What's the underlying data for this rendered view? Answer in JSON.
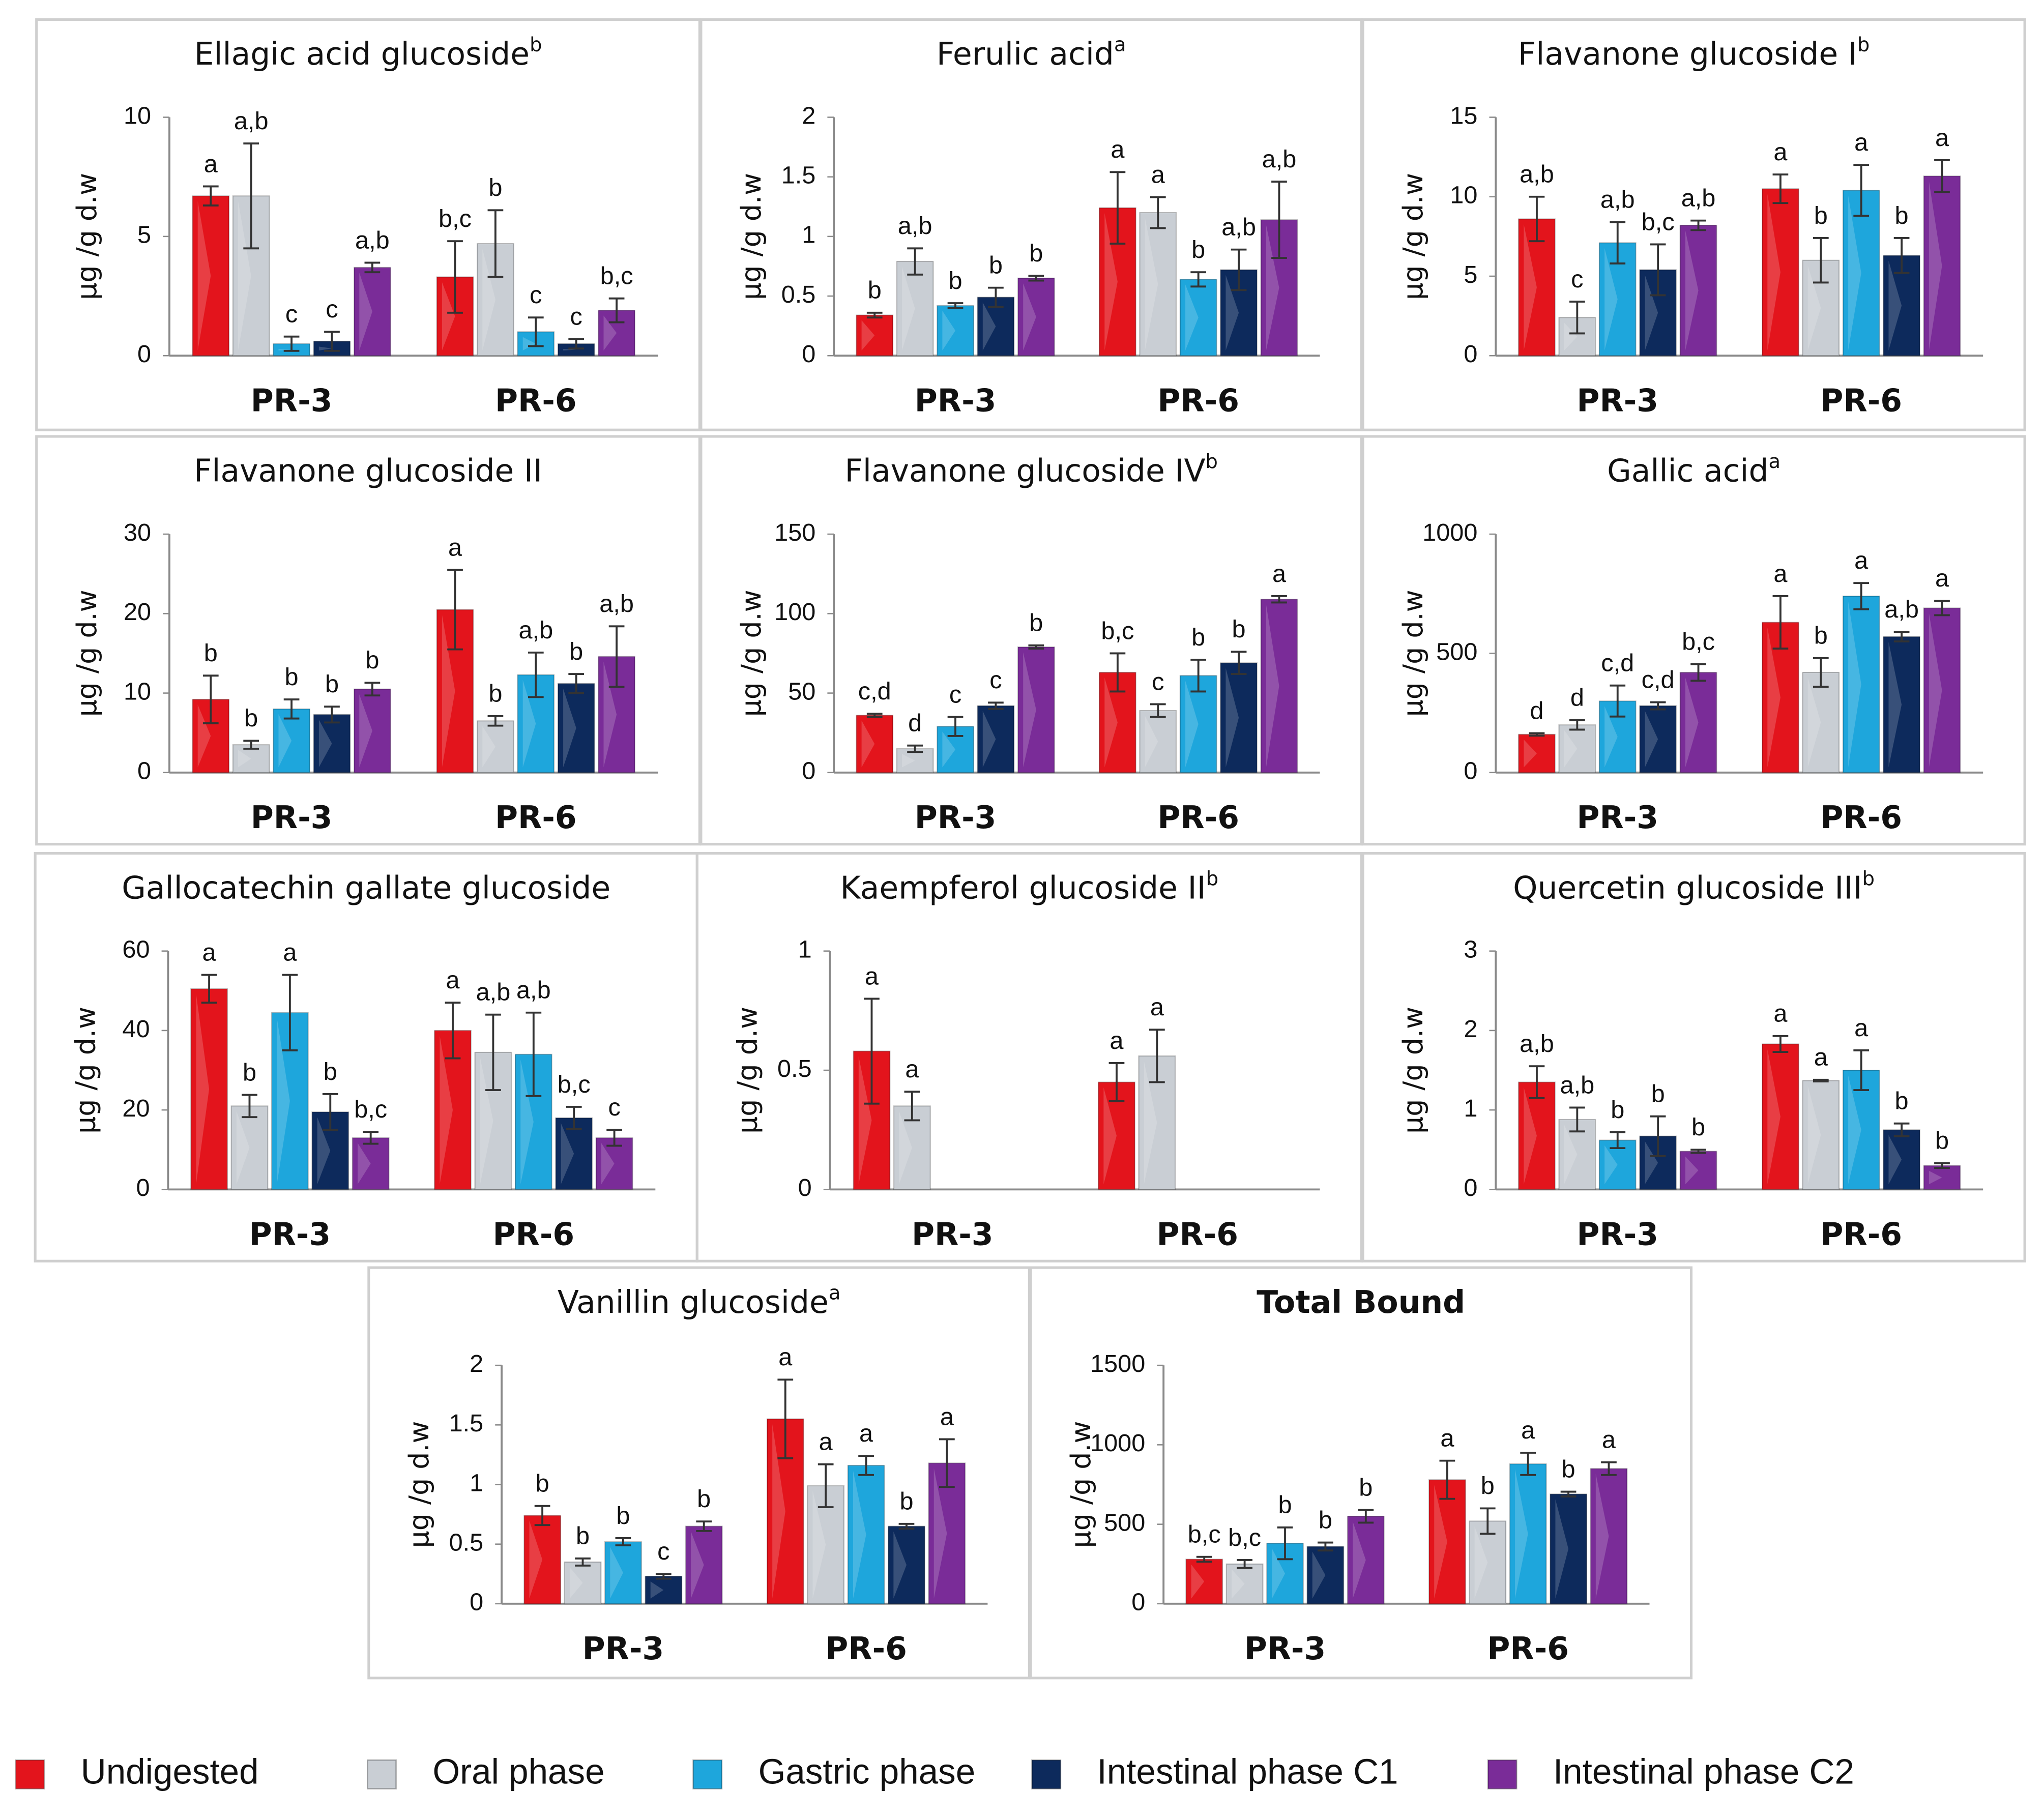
{
  "legend": [
    {
      "name": "Undigested",
      "color": "#e3141c"
    },
    {
      "name": "Oral phase",
      "color": "#c9ced4"
    },
    {
      "name": "Gastric phase",
      "color": "#1ea6dc"
    },
    {
      "name": "Intestinal phase C1",
      "color": "#0d2a5c"
    },
    {
      "name": "Intestinal phase C2",
      "color": "#7a2c98"
    }
  ],
  "chart_data": [
    {
      "type": "bar",
      "title": "Ellagic acid glucoside",
      "title_sup": "b",
      "ylabel": "μg /g d.w",
      "categories": [
        "PR-3",
        "PR-6"
      ],
      "ylim": [
        0,
        10
      ],
      "yticks": [
        0,
        5,
        10
      ],
      "series": [
        {
          "values": [
            6.7,
            3.3
          ],
          "errors": [
            0.4,
            1.5
          ],
          "letters": [
            "a",
            "b,c"
          ]
        },
        {
          "values": [
            6.7,
            4.7
          ],
          "errors": [
            2.2,
            1.4
          ],
          "letters": [
            "a,b",
            "b"
          ]
        },
        {
          "values": [
            0.5,
            1.0
          ],
          "errors": [
            0.3,
            0.6
          ],
          "letters": [
            "c",
            "c"
          ]
        },
        {
          "values": [
            0.6,
            0.5
          ],
          "errors": [
            0.4,
            0.2
          ],
          "letters": [
            "c",
            "c"
          ]
        },
        {
          "values": [
            3.7,
            1.9
          ],
          "errors": [
            0.2,
            0.5
          ],
          "letters": [
            "a,b",
            "b,c"
          ]
        }
      ]
    },
    {
      "type": "bar",
      "title": "Ferulic acid",
      "title_sup": "a",
      "ylabel": "μg /g d.w",
      "categories": [
        "PR-3",
        "PR-6"
      ],
      "ylim": [
        0,
        2
      ],
      "yticks": [
        0,
        0.5,
        1,
        1.5,
        2
      ],
      "series": [
        {
          "values": [
            0.34,
            1.24
          ],
          "errors": [
            0.02,
            0.3
          ],
          "letters": [
            "b",
            "a"
          ]
        },
        {
          "values": [
            0.79,
            1.2
          ],
          "errors": [
            0.11,
            0.13
          ],
          "letters": [
            "a,b",
            "a"
          ]
        },
        {
          "values": [
            0.42,
            0.64
          ],
          "errors": [
            0.02,
            0.06
          ],
          "letters": [
            "b",
            "b"
          ]
        },
        {
          "values": [
            0.49,
            0.72
          ],
          "errors": [
            0.08,
            0.17
          ],
          "letters": [
            "b",
            "a,b"
          ]
        },
        {
          "values": [
            0.65,
            1.14
          ],
          "errors": [
            0.02,
            0.32
          ],
          "letters": [
            "b",
            "a,b"
          ]
        }
      ]
    },
    {
      "type": "bar",
      "title": "Flavanone glucoside I",
      "title_sup": "b",
      "ylabel": "μg /g d.w",
      "categories": [
        "PR-3",
        "PR-6"
      ],
      "ylim": [
        0,
        15
      ],
      "yticks": [
        0,
        5,
        10,
        15
      ],
      "series": [
        {
          "values": [
            8.6,
            10.5
          ],
          "errors": [
            1.4,
            0.9
          ],
          "letters": [
            "a,b",
            "a"
          ]
        },
        {
          "values": [
            2.4,
            6.0
          ],
          "errors": [
            1.0,
            1.4
          ],
          "letters": [
            "c",
            "b"
          ]
        },
        {
          "values": [
            7.1,
            10.4
          ],
          "errors": [
            1.3,
            1.6
          ],
          "letters": [
            "a,b",
            "a"
          ]
        },
        {
          "values": [
            5.4,
            6.3
          ],
          "errors": [
            1.6,
            1.1
          ],
          "letters": [
            "b,c",
            "b"
          ]
        },
        {
          "values": [
            8.2,
            11.3
          ],
          "errors": [
            0.3,
            1.0
          ],
          "letters": [
            "a,b",
            "a"
          ]
        }
      ]
    },
    {
      "type": "bar",
      "title": "Flavanone glucoside II",
      "ylabel": "μg /g d.w",
      "categories": [
        "PR-3",
        "PR-6"
      ],
      "ylim": [
        0,
        30
      ],
      "yticks": [
        0,
        10,
        20,
        30
      ],
      "series": [
        {
          "values": [
            9.2,
            20.5
          ],
          "errors": [
            3,
            5
          ],
          "letters": [
            "b",
            "a"
          ]
        },
        {
          "values": [
            3.5,
            6.5
          ],
          "errors": [
            0.5,
            0.6
          ],
          "letters": [
            "b",
            "b"
          ]
        },
        {
          "values": [
            8,
            12.3
          ],
          "errors": [
            1.2,
            2.8
          ],
          "letters": [
            "b",
            "a,b"
          ]
        },
        {
          "values": [
            7.3,
            11.2
          ],
          "errors": [
            1,
            1.2
          ],
          "letters": [
            "b",
            "b"
          ]
        },
        {
          "values": [
            10.5,
            14.6
          ],
          "errors": [
            0.8,
            3.8
          ],
          "letters": [
            "b",
            "a,b"
          ]
        }
      ]
    },
    {
      "type": "bar",
      "title": "Flavanone glucoside IV",
      "title_sup": "b",
      "ylabel": "μg /g d.w",
      "categories": [
        "PR-3",
        "PR-6"
      ],
      "ylim": [
        0,
        150
      ],
      "yticks": [
        0,
        50,
        100,
        150
      ],
      "series": [
        {
          "values": [
            36,
            63
          ],
          "errors": [
            1,
            12
          ],
          "letters": [
            "c,d",
            "b,c"
          ]
        },
        {
          "values": [
            15,
            39
          ],
          "errors": [
            2,
            4
          ],
          "letters": [
            "d",
            "c"
          ]
        },
        {
          "values": [
            29,
            61
          ],
          "errors": [
            6,
            10
          ],
          "letters": [
            "c",
            "b"
          ]
        },
        {
          "values": [
            42,
            69
          ],
          "errors": [
            2,
            7
          ],
          "letters": [
            "c",
            "b"
          ]
        },
        {
          "values": [
            79,
            109
          ],
          "errors": [
            1,
            2
          ],
          "letters": [
            "b",
            "a"
          ]
        }
      ]
    },
    {
      "type": "bar",
      "title": "Gallic acid",
      "title_sup": "a",
      "ylabel": "μg /g d.w",
      "categories": [
        "PR-3",
        "PR-6"
      ],
      "ylim": [
        0,
        1000
      ],
      "yticks": [
        0,
        500,
        1000
      ],
      "series": [
        {
          "values": [
            160,
            630
          ],
          "errors": [
            5,
            110
          ],
          "letters": [
            "d",
            "a"
          ]
        },
        {
          "values": [
            200,
            420
          ],
          "errors": [
            20,
            60
          ],
          "letters": [
            "d",
            "b"
          ]
        },
        {
          "values": [
            300,
            740
          ],
          "errors": [
            65,
            55
          ],
          "letters": [
            "c,d",
            "a"
          ]
        },
        {
          "values": [
            280,
            570
          ],
          "errors": [
            15,
            20
          ],
          "letters": [
            "c,d",
            "a,b"
          ]
        },
        {
          "values": [
            420,
            690
          ],
          "errors": [
            35,
            30
          ],
          "letters": [
            "b,c",
            "a"
          ]
        }
      ]
    },
    {
      "type": "bar",
      "title": "Gallocatechin gallate glucoside",
      "ylabel": "μg /g d.w",
      "categories": [
        "PR-3",
        "PR-6"
      ],
      "ylim": [
        0,
        60
      ],
      "yticks": [
        0,
        20,
        40,
        60
      ],
      "series": [
        {
          "values": [
            50.5,
            40
          ],
          "errors": [
            3.5,
            7
          ],
          "letters": [
            "a",
            "a"
          ]
        },
        {
          "values": [
            21,
            34.5
          ],
          "errors": [
            2.8,
            9.5
          ],
          "letters": [
            "b",
            "a,b"
          ]
        },
        {
          "values": [
            44.5,
            34
          ],
          "errors": [
            9.5,
            10.5
          ],
          "letters": [
            "a",
            "a,b"
          ]
        },
        {
          "values": [
            19.5,
            18
          ],
          "errors": [
            4.5,
            2.8
          ],
          "letters": [
            "b",
            "b,c"
          ]
        },
        {
          "values": [
            13,
            13
          ],
          "errors": [
            1.5,
            2
          ],
          "letters": [
            "b,c",
            "c"
          ]
        }
      ]
    },
    {
      "type": "bar",
      "title": "Kaempferol glucoside II",
      "title_sup": "b",
      "ylabel": "μg /g d.w",
      "categories": [
        "PR-3",
        "PR-6"
      ],
      "ylim": [
        0,
        1
      ],
      "yticks": [
        0,
        0.5,
        1
      ],
      "series": [
        {
          "values": [
            0.58,
            0.45
          ],
          "errors": [
            0.22,
            0.08
          ],
          "letters": [
            "a",
            "a"
          ]
        },
        {
          "values": [
            0.35,
            0.56
          ],
          "errors": [
            0.06,
            0.11
          ],
          "letters": [
            "a",
            "a"
          ]
        },
        {
          "values": [
            null,
            null
          ],
          "errors": [
            null,
            null
          ],
          "letters": [
            null,
            null
          ]
        },
        {
          "values": [
            null,
            null
          ],
          "errors": [
            null,
            null
          ],
          "letters": [
            null,
            null
          ]
        },
        {
          "values": [
            null,
            null
          ],
          "errors": [
            null,
            null
          ],
          "letters": [
            null,
            null
          ]
        }
      ]
    },
    {
      "type": "bar",
      "title": "Quercetin glucoside III",
      "title_sup": "b",
      "ylabel": "μg /g d.w",
      "categories": [
        "PR-3",
        "PR-6"
      ],
      "ylim": [
        0,
        3
      ],
      "yticks": [
        0,
        1,
        2,
        3
      ],
      "series": [
        {
          "values": [
            1.35,
            1.83
          ],
          "errors": [
            0.2,
            0.1
          ],
          "letters": [
            "a,b",
            "a"
          ]
        },
        {
          "values": [
            0.88,
            1.37
          ],
          "errors": [
            0.15,
            0.01
          ],
          "letters": [
            "a,b",
            "a"
          ]
        },
        {
          "values": [
            0.62,
            1.5
          ],
          "errors": [
            0.1,
            0.25
          ],
          "letters": [
            "b",
            "a"
          ]
        },
        {
          "values": [
            0.67,
            0.75
          ],
          "errors": [
            0.25,
            0.08
          ],
          "letters": [
            "b",
            "b"
          ]
        },
        {
          "values": [
            0.48,
            0.3
          ],
          "errors": [
            0.02,
            0.03
          ],
          "letters": [
            "b",
            "b"
          ]
        }
      ]
    },
    {
      "type": "bar",
      "title": "Vanillin glucoside",
      "title_sup": "a",
      "ylabel": "μg /g d.w",
      "categories": [
        "PR-3",
        "PR-6"
      ],
      "ylim": [
        0,
        2
      ],
      "yticks": [
        0,
        0.5,
        1,
        1.5,
        2
      ],
      "series": [
        {
          "values": [
            0.74,
            1.55
          ],
          "errors": [
            0.08,
            0.33
          ],
          "letters": [
            "b",
            "a"
          ]
        },
        {
          "values": [
            0.35,
            0.99
          ],
          "errors": [
            0.03,
            0.18
          ],
          "letters": [
            "b",
            "a"
          ]
        },
        {
          "values": [
            0.52,
            1.16
          ],
          "errors": [
            0.03,
            0.08
          ],
          "letters": [
            "b",
            "a"
          ]
        },
        {
          "values": [
            0.23,
            0.65
          ],
          "errors": [
            0.02,
            0.02
          ],
          "letters": [
            "c",
            "b"
          ]
        },
        {
          "values": [
            0.65,
            1.18
          ],
          "errors": [
            0.04,
            0.2
          ],
          "letters": [
            "b",
            "a"
          ]
        }
      ]
    },
    {
      "type": "bar",
      "title": "Total Bound",
      "title_bold": true,
      "ylabel": "μg /g d.w",
      "categories": [
        "PR-3",
        "PR-6"
      ],
      "ylim": [
        0,
        1500
      ],
      "yticks": [
        0,
        500,
        1000,
        1500
      ],
      "series": [
        {
          "values": [
            280,
            780
          ],
          "errors": [
            15,
            120
          ],
          "letters": [
            "b,c",
            "a"
          ]
        },
        {
          "values": [
            250,
            520
          ],
          "errors": [
            25,
            80
          ],
          "letters": [
            "b,c",
            "b"
          ]
        },
        {
          "values": [
            380,
            880
          ],
          "errors": [
            100,
            70
          ],
          "letters": [
            "b",
            "a"
          ]
        },
        {
          "values": [
            360,
            690
          ],
          "errors": [
            25,
            15
          ],
          "letters": [
            "b",
            "b"
          ]
        },
        {
          "values": [
            550,
            850
          ],
          "errors": [
            40,
            40
          ],
          "letters": [
            "b",
            "a"
          ]
        }
      ]
    }
  ]
}
